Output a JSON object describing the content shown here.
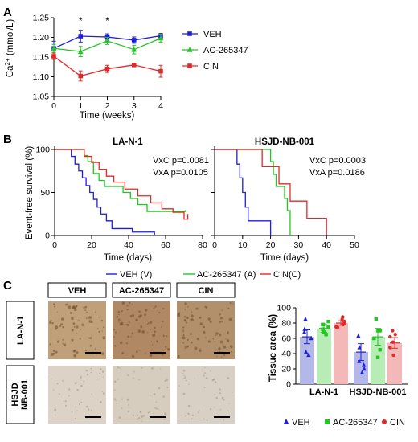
{
  "panel_letters": [
    "A",
    "B",
    "C"
  ],
  "chart_data": [
    {
      "panel": "A",
      "type": "line",
      "xlabel": "Time (weeks)",
      "ylabel": "Ca2+ (mmol/L)",
      "ylabel_main": "Ca",
      "ylabel_sup": "2+",
      "ylabel_rest": " (mmol/L)",
      "x": [
        0,
        1,
        2,
        3,
        4
      ],
      "xlim": [
        0,
        4
      ],
      "ylim": [
        1.05,
        1.25
      ],
      "x_ticks": [
        "0",
        "1",
        "2",
        "3",
        "4"
      ],
      "y_ticks": [
        "1.05",
        "1.10",
        "1.15",
        "1.20",
        "1.25"
      ],
      "annotations": [
        {
          "x": 1,
          "text": "*"
        },
        {
          "x": 2,
          "text": "*"
        }
      ],
      "series": [
        {
          "name": "VEH",
          "color": "#1f1fd6",
          "marker": "square",
          "values": [
            1.172,
            1.203,
            1.201,
            1.193,
            1.204
          ],
          "err": [
            0.018,
            0.015,
            0.008,
            0.008,
            0.006
          ]
        },
        {
          "name": "AC-265347",
          "color": "#22c522",
          "marker": "triangle",
          "values": [
            1.172,
            1.164,
            1.191,
            1.169,
            1.198
          ],
          "err": [
            0.01,
            0.013,
            0.009,
            0.011,
            0.01
          ]
        },
        {
          "name": "CIN",
          "color": "#e02a2a",
          "marker": "square",
          "values": [
            1.152,
            1.102,
            1.12,
            1.13,
            1.114
          ],
          "err": [
            0.008,
            0.013,
            0.009,
            0.003,
            0.015
          ]
        }
      ],
      "legend": [
        "VEH",
        "AC-265347",
        "CIN"
      ]
    },
    {
      "panel": "B1",
      "type": "line",
      "subtype": "kaplan-meier",
      "title": "LA-N-1",
      "xlabel": "Time (days)",
      "ylabel": "Event-free survival (%)",
      "xlim": [
        0,
        80
      ],
      "ylim": [
        0,
        100
      ],
      "x_ticks": [
        "0",
        "20",
        "40",
        "60",
        "80"
      ],
      "y_ticks": [
        "0",
        "50",
        "100"
      ],
      "stats": [
        "VxC p=0.0081",
        "VxA p=0.0105"
      ],
      "series": [
        {
          "name": "VEH (V)",
          "color": "#1f1fd6",
          "steps": [
            [
              0,
              100
            ],
            [
              9,
              100
            ],
            [
              9,
              92
            ],
            [
              11,
              92
            ],
            [
              11,
              83
            ],
            [
              13,
              83
            ],
            [
              13,
              75
            ],
            [
              15,
              75
            ],
            [
              15,
              67
            ],
            [
              17,
              67
            ],
            [
              17,
              58
            ],
            [
              19,
              58
            ],
            [
              19,
              50
            ],
            [
              21,
              50
            ],
            [
              21,
              42
            ],
            [
              23,
              42
            ],
            [
              23,
              33
            ],
            [
              25,
              33
            ],
            [
              25,
              25
            ],
            [
              28,
              25
            ],
            [
              28,
              17
            ],
            [
              31,
              17
            ],
            [
              31,
              8
            ],
            [
              42,
              8
            ],
            [
              42,
              4
            ],
            [
              54,
              4
            ],
            [
              54,
              0
            ]
          ]
        },
        {
          "name": "AC-265347 (A)",
          "color": "#22c522",
          "steps": [
            [
              0,
              100
            ],
            [
              16,
              100
            ],
            [
              16,
              93
            ],
            [
              18,
              93
            ],
            [
              18,
              86
            ],
            [
              21,
              86
            ],
            [
              21,
              72
            ],
            [
              24,
              72
            ],
            [
              24,
              64
            ],
            [
              27,
              64
            ],
            [
              27,
              57
            ],
            [
              37,
              57
            ],
            [
              37,
              50
            ],
            [
              41,
              50
            ],
            [
              41,
              43
            ],
            [
              45,
              43
            ],
            [
              45,
              36
            ],
            [
              50,
              36
            ],
            [
              50,
              28
            ],
            [
              71,
              28
            ],
            [
              71,
              30
            ]
          ]
        },
        {
          "name": "CIN(C)",
          "color": "#e02a2a",
          "steps": [
            [
              0,
              100
            ],
            [
              16,
              100
            ],
            [
              16,
              92
            ],
            [
              20,
              92
            ],
            [
              20,
              85
            ],
            [
              24,
              85
            ],
            [
              24,
              77
            ],
            [
              28,
              77
            ],
            [
              28,
              69
            ],
            [
              32,
              69
            ],
            [
              32,
              62
            ],
            [
              38,
              62
            ],
            [
              38,
              54
            ],
            [
              45,
              54
            ],
            [
              45,
              46
            ],
            [
              52,
              46
            ],
            [
              52,
              38
            ],
            [
              58,
              38
            ],
            [
              58,
              31
            ],
            [
              64,
              31
            ],
            [
              64,
              27
            ],
            [
              70,
              27
            ],
            [
              70,
              19
            ],
            [
              72,
              19
            ],
            [
              72,
              25
            ]
          ]
        }
      ]
    },
    {
      "panel": "B2",
      "type": "line",
      "subtype": "kaplan-meier",
      "title": "HSJD-NB-001",
      "xlabel": "Time (days)",
      "xlim": [
        0,
        50
      ],
      "ylim": [
        0,
        100
      ],
      "x_ticks": [
        "0",
        "10",
        "20",
        "30",
        "40",
        "50"
      ],
      "stats": [
        "VxC p=0.0003",
        "VxA p=0.0186"
      ],
      "series": [
        {
          "name": "VEH (V)",
          "color": "#1f1fd6",
          "steps": [
            [
              0,
              100
            ],
            [
              8,
              100
            ],
            [
              8,
              83
            ],
            [
              9,
              83
            ],
            [
              9,
              67
            ],
            [
              10,
              67
            ],
            [
              10,
              50
            ],
            [
              11,
              50
            ],
            [
              11,
              33
            ],
            [
              12,
              33
            ],
            [
              12,
              17
            ],
            [
              20,
              17
            ],
            [
              20,
              0
            ]
          ]
        },
        {
          "name": "AC-265347 (A)",
          "color": "#22c522",
          "steps": [
            [
              0,
              100
            ],
            [
              20,
              100
            ],
            [
              20,
              86
            ],
            [
              21,
              86
            ],
            [
              21,
              71
            ],
            [
              22,
              71
            ],
            [
              22,
              57
            ],
            [
              25,
              57
            ],
            [
              25,
              43
            ],
            [
              26,
              43
            ],
            [
              26,
              29
            ],
            [
              27,
              29
            ],
            [
              27,
              0
            ]
          ]
        },
        {
          "name": "CIN(C)",
          "color": "#e02a2a",
          "steps": [
            [
              0,
              100
            ],
            [
              17,
              100
            ],
            [
              17,
              80
            ],
            [
              23,
              80
            ],
            [
              23,
              60
            ],
            [
              27,
              60
            ],
            [
              27,
              40
            ],
            [
              33,
              40
            ],
            [
              33,
              20
            ],
            [
              40,
              20
            ],
            [
              40,
              0
            ]
          ]
        }
      ]
    },
    {
      "panel": "C",
      "type": "bar",
      "ylabel": "Tissue area (%)",
      "ylim": [
        0,
        100
      ],
      "y_ticks": [
        "0",
        "20",
        "40",
        "60",
        "80",
        "100"
      ],
      "categories": [
        "LA-N-1",
        "HSJD-NB-001"
      ],
      "series": [
        {
          "name": "VEH",
          "color": "#1f1fd6",
          "fill": "#b3b8e8",
          "marker": "triangle",
          "values": [
            62,
            42
          ],
          "err": [
            9,
            11
          ],
          "points": [
            [
              85,
              68,
              60,
              42,
              38,
              72
            ],
            [
              63,
              30,
              20,
              15,
              25,
              48
            ]
          ]
        },
        {
          "name": "AC-265347",
          "color": "#22c522",
          "fill": "#b8ecb6",
          "marker": "square",
          "values": [
            73,
            62
          ],
          "err": [
            5,
            11
          ],
          "points": [
            [
              82,
              78,
              72,
              68,
              75,
              65,
              78
            ],
            [
              85,
              70,
              60,
              45,
              35,
              70
            ]
          ]
        },
        {
          "name": "CIN",
          "color": "#e02a2a",
          "fill": "#f4b8b8",
          "marker": "circle",
          "values": [
            80,
            54
          ],
          "err": [
            3,
            7
          ],
          "points": [
            [
              85,
              88,
              75,
              80,
              78,
              82,
              74
            ],
            [
              70,
              65,
              48,
              38,
              55,
              62
            ]
          ]
        }
      ]
    }
  ],
  "km_legend": [
    {
      "label": "VEH (V)",
      "color": "#1f1fd6"
    },
    {
      "label": "AC-265347 (A)",
      "color": "#22c522"
    },
    {
      "label": "CIN(C)",
      "color": "#e02a2a"
    }
  ],
  "histology": {
    "column_headers": [
      "VEH",
      "AC-265347",
      "CIN"
    ],
    "row_labels": [
      "LA-N-1",
      "HSJD\nNB-001"
    ],
    "row_label_lines": [
      [
        "LA-N-1"
      ],
      [
        "HSJD",
        "NB-001"
      ]
    ],
    "tile_colors": [
      [
        "#bfa078",
        "#b08864",
        "#b3906c"
      ],
      [
        "#dcd3c6",
        "#d6cdbf",
        "#d8d0c4"
      ]
    ]
  }
}
